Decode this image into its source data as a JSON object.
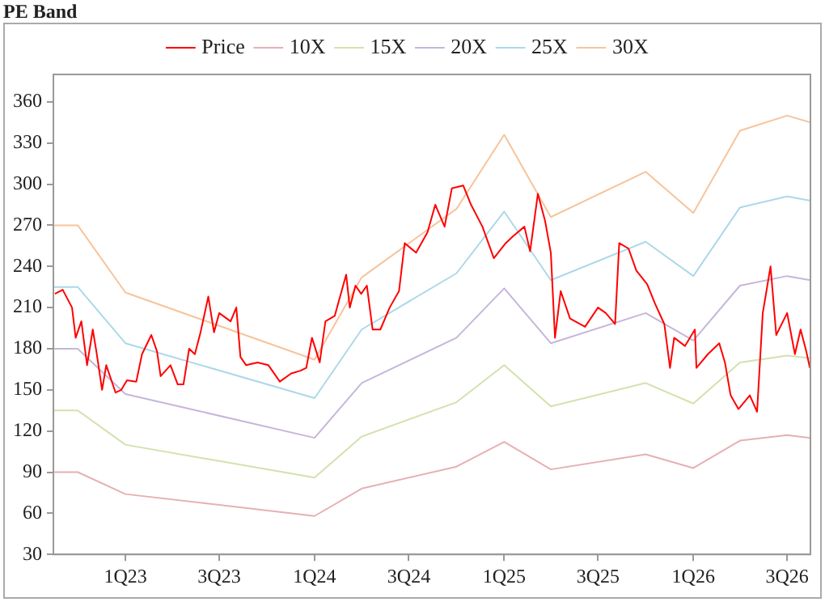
{
  "chart_data": {
    "type": "line",
    "title": "PE Band",
    "legend": "top",
    "grid": false,
    "marker": "none",
    "line_style": "solid",
    "xlim": [
      "2022-08-15",
      "2026-08-15"
    ],
    "xticks": [
      {
        "value": "2023-01-01",
        "label": "1Q23"
      },
      {
        "value": "2023-07-01",
        "label": "3Q23"
      },
      {
        "value": "2024-01-01",
        "label": "1Q24"
      },
      {
        "value": "2024-07-01",
        "label": "3Q24"
      },
      {
        "value": "2025-01-01",
        "label": "1Q25"
      },
      {
        "value": "2025-07-01",
        "label": "3Q25"
      },
      {
        "value": "2026-01-01",
        "label": "1Q26"
      },
      {
        "value": "2026-07-01",
        "label": "3Q26"
      }
    ],
    "ylim": [
      30,
      380
    ],
    "yticks": [
      30,
      60,
      90,
      120,
      150,
      180,
      210,
      240,
      270,
      300,
      330,
      360
    ],
    "series": [
      {
        "name": "Price",
        "color": "#ff0000",
        "x": [
          "2022-08-18",
          "2022-09-02",
          "2022-09-20",
          "2022-09-27",
          "2022-10-08",
          "2022-10-19",
          "2022-10-30",
          "2022-11-06",
          "2022-11-17",
          "2022-11-25",
          "2022-12-13",
          "2022-12-24",
          "2023-01-04",
          "2023-01-22",
          "2023-02-02",
          "2023-02-20",
          "2023-03-03",
          "2023-03-10",
          "2023-03-29",
          "2023-04-12",
          "2023-04-23",
          "2023-05-04",
          "2023-05-15",
          "2023-05-26",
          "2023-06-10",
          "2023-06-21",
          "2023-07-01",
          "2023-07-23",
          "2023-08-03",
          "2023-08-11",
          "2023-08-22",
          "2023-09-13",
          "2023-10-04",
          "2023-10-26",
          "2023-11-17",
          "2023-12-05",
          "2023-12-16",
          "2023-12-27",
          "2024-01-11",
          "2024-01-22",
          "2024-02-09",
          "2024-03-02",
          "2024-03-09",
          "2024-03-20",
          "2024-03-31",
          "2024-04-11",
          "2024-04-22",
          "2024-05-07",
          "2024-05-25",
          "2024-06-12",
          "2024-06-23",
          "2024-07-15",
          "2024-08-06",
          "2024-08-21",
          "2024-09-08",
          "2024-09-22",
          "2024-10-14",
          "2024-10-29",
          "2024-11-20",
          "2024-12-12",
          "2025-01-04",
          "2025-01-18",
          "2025-02-09",
          "2025-02-20",
          "2025-03-07",
          "2025-03-21",
          "2025-04-01",
          "2025-04-09",
          "2025-04-20",
          "2025-05-08",
          "2025-06-06",
          "2025-07-01",
          "2025-07-16",
          "2025-08-03",
          "2025-08-11",
          "2025-08-29",
          "2025-09-13",
          "2025-10-04",
          "2025-10-19",
          "2025-11-06",
          "2025-11-17",
          "2025-11-25",
          "2025-12-16",
          "2026-01-04",
          "2026-01-07",
          "2026-01-29",
          "2026-02-20",
          "2026-03-03",
          "2026-03-14",
          "2026-03-29",
          "2026-04-20",
          "2026-05-04",
          "2026-05-15",
          "2026-05-30",
          "2026-06-10",
          "2026-07-01",
          "2026-07-16",
          "2026-07-27",
          "2026-08-07",
          "2026-08-14"
        ],
        "values": [
          220,
          223,
          210,
          188,
          200,
          168,
          194,
          178,
          150,
          168,
          148,
          150,
          157,
          156,
          176,
          190,
          178,
          160,
          168,
          154,
          154,
          180,
          176,
          192,
          218,
          192,
          206,
          200,
          210,
          174,
          168,
          170,
          168,
          156,
          162,
          164,
          166,
          188,
          170,
          200,
          204,
          234,
          210,
          226,
          220,
          226,
          194,
          194,
          210,
          222,
          257,
          250,
          265,
          285,
          269,
          297,
          299,
          285,
          269,
          246,
          257,
          262,
          269,
          251,
          293,
          273,
          250,
          188,
          222,
          202,
          196,
          210,
          206,
          198,
          257,
          253,
          237,
          227,
          213,
          198,
          166,
          188,
          182,
          194,
          166,
          176,
          184,
          170,
          146,
          136,
          146,
          134,
          206,
          240,
          190,
          206,
          176,
          194,
          178,
          166
        ]
      },
      {
        "name": "10X",
        "color": "#e6b0b4",
        "x": [
          "2022-08-15",
          "2022-10-01",
          "2023-01-01",
          "2024-01-01",
          "2024-04-01",
          "2024-10-01",
          "2025-01-01",
          "2025-04-01",
          "2025-10-01",
          "2026-01-01",
          "2026-04-01",
          "2026-07-01",
          "2026-08-15"
        ],
        "values": [
          90,
          90,
          74,
          58,
          78,
          94,
          112,
          92,
          103,
          93,
          113,
          117,
          115
        ]
      },
      {
        "name": "15X",
        "color": "#d2e2ae",
        "x": [
          "2022-08-15",
          "2022-10-01",
          "2023-01-01",
          "2024-01-01",
          "2024-04-01",
          "2024-10-01",
          "2025-01-01",
          "2025-04-01",
          "2025-10-01",
          "2026-01-01",
          "2026-04-01",
          "2026-07-01",
          "2026-08-15"
        ],
        "values": [
          135,
          135,
          110,
          86,
          116,
          141,
          168,
          138,
          155,
          140,
          170,
          175,
          173
        ]
      },
      {
        "name": "20X",
        "color": "#c6b6da",
        "x": [
          "2022-08-15",
          "2022-10-01",
          "2023-01-01",
          "2024-01-01",
          "2024-04-01",
          "2024-10-01",
          "2025-01-01",
          "2025-04-01",
          "2025-10-01",
          "2026-01-01",
          "2026-04-01",
          "2026-07-01",
          "2026-08-15"
        ],
        "values": [
          180,
          180,
          147,
          115,
          155,
          188,
          224,
          184,
          206,
          186,
          226,
          233,
          230
        ]
      },
      {
        "name": "25X",
        "color": "#acd8ea",
        "x": [
          "2022-08-15",
          "2022-10-01",
          "2023-01-01",
          "2024-01-01",
          "2024-04-01",
          "2024-10-01",
          "2025-01-01",
          "2025-04-01",
          "2025-10-01",
          "2026-01-01",
          "2026-04-01",
          "2026-07-01",
          "2026-08-15"
        ],
        "values": [
          225,
          225,
          184,
          144,
          194,
          235,
          280,
          230,
          258,
          233,
          283,
          291,
          288
        ]
      },
      {
        "name": "30X",
        "color": "#f6c49c",
        "x": [
          "2022-08-15",
          "2022-10-01",
          "2023-01-01",
          "2024-01-01",
          "2024-04-01",
          "2024-10-01",
          "2025-01-01",
          "2025-04-01",
          "2025-10-01",
          "2026-01-01",
          "2026-04-01",
          "2026-07-01",
          "2026-08-15"
        ],
        "values": [
          270,
          270,
          221,
          172,
          232,
          282,
          336,
          276,
          309,
          279,
          339,
          350,
          345
        ]
      }
    ]
  }
}
